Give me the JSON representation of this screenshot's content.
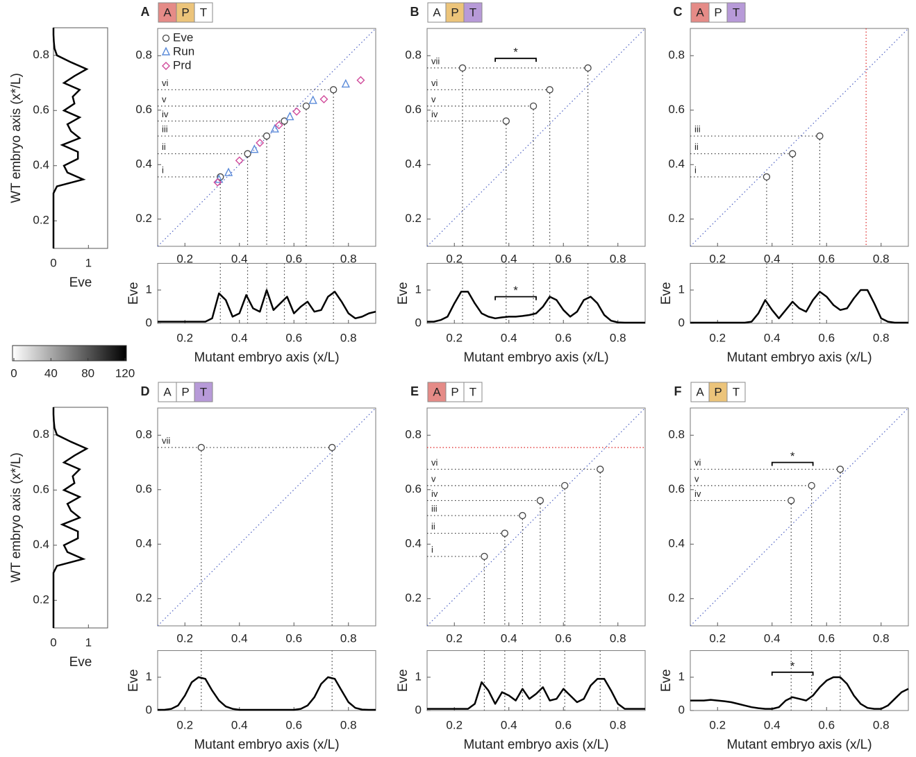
{
  "chart_data": [
    {
      "type": "line",
      "orientation": "horizontal",
      "xlabel": "Eve",
      "ylabel": "WT embryo axis (x*/L)",
      "xlim": [
        0,
        1.55
      ],
      "xticks": [
        0,
        1
      ],
      "ylim": [
        0.1,
        0.9
      ],
      "yticks": [
        0.2,
        0.4,
        0.6,
        0.8
      ],
      "color": "#000000",
      "y": [
        0.1,
        0.125,
        0.15,
        0.175,
        0.2,
        0.225,
        0.25,
        0.275,
        0.3,
        0.325,
        0.35,
        0.375,
        0.4,
        0.425,
        0.45,
        0.475,
        0.5,
        0.525,
        0.55,
        0.575,
        0.6,
        0.625,
        0.65,
        0.675,
        0.7,
        0.725,
        0.75,
        0.775,
        0.8,
        0.825,
        0.85,
        0.875,
        0.9
      ],
      "values": [
        0,
        0,
        0,
        0,
        0,
        0,
        0,
        0,
        0,
        0.1,
        0.85,
        0.4,
        0.3,
        0.7,
        0.7,
        0.25,
        0.75,
        0.5,
        0.4,
        0.75,
        0.3,
        0.6,
        0.55,
        0.75,
        0.3,
        0.6,
        0.95,
        0.5,
        0.1,
        0.03,
        0.01,
        0,
        0
      ]
    },
    {
      "type": "line",
      "orientation": "horizontal",
      "xlabel": "Eve",
      "ylabel": "WT embryo axis (x*/L)",
      "xlim": [
        0,
        1.55
      ],
      "xticks": [
        0,
        1
      ],
      "ylim": [
        0.1,
        0.9
      ],
      "yticks": [
        0.2,
        0.4,
        0.6,
        0.8
      ],
      "color": "#000000",
      "y": [
        0.1,
        0.125,
        0.15,
        0.175,
        0.2,
        0.225,
        0.25,
        0.275,
        0.3,
        0.325,
        0.35,
        0.375,
        0.4,
        0.425,
        0.45,
        0.475,
        0.5,
        0.525,
        0.55,
        0.575,
        0.6,
        0.625,
        0.65,
        0.675,
        0.7,
        0.725,
        0.75,
        0.775,
        0.8,
        0.825,
        0.85,
        0.875,
        0.9
      ],
      "values": [
        0,
        0,
        0,
        0,
        0,
        0,
        0,
        0,
        0,
        0.1,
        0.85,
        0.4,
        0.3,
        0.7,
        0.7,
        0.25,
        0.75,
        0.5,
        0.4,
        0.75,
        0.3,
        0.6,
        0.55,
        0.75,
        0.3,
        0.6,
        0.95,
        0.5,
        0.1,
        0.03,
        0.01,
        0,
        0
      ]
    },
    {
      "type": "colorbar",
      "xlim": [
        0,
        120
      ],
      "xticks": [
        0,
        40,
        80,
        120
      ],
      "colors": [
        "#ffffff",
        "#000000"
      ]
    },
    {
      "type": "scatter",
      "panel": "A",
      "tags": [
        {
          "label": "A",
          "color": "#e58b87"
        },
        {
          "label": "P",
          "color": "#ecc47a"
        },
        {
          "label": "T",
          "color": "#ffffff"
        }
      ],
      "xlim": [
        0.1,
        0.9
      ],
      "ylim": [
        0.1,
        0.9
      ],
      "xticks": [
        0.2,
        0.4,
        0.6,
        0.8
      ],
      "yticks": [
        0.2,
        0.4,
        0.6,
        0.8
      ],
      "series": [
        {
          "name": "Eve",
          "marker": "circle",
          "color": "#444444",
          "x": [
            0.33,
            0.43,
            0.5,
            0.565,
            0.645,
            0.745
          ],
          "y": [
            0.355,
            0.44,
            0.505,
            0.56,
            0.615,
            0.675
          ],
          "labels": [
            "i",
            "ii",
            "iii",
            "iv",
            "v",
            "vi"
          ]
        },
        {
          "name": "Run",
          "marker": "triangle",
          "color": "#5b8bd9",
          "x": [
            0.325,
            0.36,
            0.455,
            0.53,
            0.585,
            0.67,
            0.79
          ],
          "y": [
            0.345,
            0.37,
            0.455,
            0.53,
            0.575,
            0.635,
            0.695
          ]
        },
        {
          "name": "Prd",
          "marker": "diamond",
          "color": "#d04a9a",
          "x": [
            0.32,
            0.4,
            0.475,
            0.545,
            0.61,
            0.71,
            0.845
          ],
          "y": [
            0.335,
            0.415,
            0.48,
            0.545,
            0.595,
            0.64,
            0.71
          ]
        }
      ],
      "profile": {
        "type": "line",
        "xlabel": "Mutant embryo axis (x/L)",
        "ylabel": "Eve",
        "xlim": [
          0.1,
          0.9
        ],
        "ylim": [
          0,
          1.8
        ],
        "xticks": [
          0.2,
          0.4,
          0.6,
          0.8
        ],
        "yticks": [
          0,
          1
        ],
        "color": "#000000",
        "x": [
          0.1,
          0.125,
          0.15,
          0.175,
          0.2,
          0.225,
          0.25,
          0.275,
          0.3,
          0.325,
          0.35,
          0.375,
          0.4,
          0.425,
          0.45,
          0.475,
          0.5,
          0.525,
          0.55,
          0.575,
          0.6,
          0.625,
          0.65,
          0.675,
          0.7,
          0.725,
          0.75,
          0.775,
          0.8,
          0.825,
          0.85,
          0.875,
          0.9
        ],
        "values": [
          0.05,
          0.05,
          0.05,
          0.05,
          0.05,
          0.05,
          0.05,
          0.05,
          0.15,
          0.9,
          0.7,
          0.2,
          0.3,
          0.85,
          0.45,
          0.35,
          1.0,
          0.4,
          0.6,
          0.8,
          0.3,
          0.5,
          0.65,
          0.35,
          0.4,
          0.8,
          0.95,
          0.65,
          0.3,
          0.15,
          0.2,
          0.3,
          0.35
        ]
      }
    },
    {
      "type": "scatter",
      "panel": "B",
      "tags": [
        {
          "label": "A",
          "color": "#ffffff"
        },
        {
          "label": "P",
          "color": "#ecc47a"
        },
        {
          "label": "T",
          "color": "#b79ad8"
        }
      ],
      "xlim": [
        0.1,
        0.9
      ],
      "ylim": [
        0.1,
        0.9
      ],
      "xticks": [
        0.2,
        0.4,
        0.6,
        0.8
      ],
      "yticks": [
        0.2,
        0.4,
        0.6,
        0.8
      ],
      "series": [
        {
          "marker": "circle",
          "color": "#444444",
          "x": [
            0.23,
            0.39,
            0.49,
            0.55,
            0.69
          ],
          "y": [
            0.755,
            0.56,
            0.615,
            0.675,
            0.755
          ],
          "labels": [
            "vii",
            "iv",
            "v",
            "vi",
            null
          ]
        }
      ],
      "bracket": {
        "x": [
          0.35,
          0.5
        ],
        "y": 0.79,
        "label": "*"
      },
      "profile": {
        "type": "line",
        "xlabel": "Mutant embryo axis (x/L)",
        "ylabel": "Eve",
        "xlim": [
          0.1,
          0.9
        ],
        "ylim": [
          0,
          1.8
        ],
        "xticks": [
          0.2,
          0.4,
          0.6,
          0.8
        ],
        "yticks": [
          0,
          1
        ],
        "color": "#000000",
        "x": [
          0.1,
          0.125,
          0.15,
          0.175,
          0.2,
          0.225,
          0.25,
          0.275,
          0.3,
          0.325,
          0.35,
          0.375,
          0.4,
          0.425,
          0.45,
          0.475,
          0.5,
          0.525,
          0.55,
          0.575,
          0.6,
          0.625,
          0.65,
          0.675,
          0.7,
          0.725,
          0.75,
          0.775,
          0.8,
          0.825,
          0.85,
          0.875,
          0.9
        ],
        "values": [
          0.05,
          0.05,
          0.1,
          0.2,
          0.6,
          0.95,
          0.95,
          0.6,
          0.3,
          0.2,
          0.15,
          0.18,
          0.2,
          0.2,
          0.22,
          0.25,
          0.3,
          0.5,
          0.8,
          0.7,
          0.4,
          0.2,
          0.35,
          0.7,
          0.8,
          0.6,
          0.25,
          0.08,
          0.03,
          0.02,
          0.02,
          0.02,
          0.02
        ],
        "bracket": {
          "x": [
            0.35,
            0.5
          ],
          "y": 0.8,
          "label": "*"
        }
      }
    },
    {
      "type": "scatter",
      "panel": "C",
      "tags": [
        {
          "label": "A",
          "color": "#e58b87"
        },
        {
          "label": "P",
          "color": "#ffffff"
        },
        {
          "label": "T",
          "color": "#b79ad8"
        }
      ],
      "xlim": [
        0.1,
        0.9
      ],
      "ylim": [
        0.1,
        0.9
      ],
      "xticks": [
        0.2,
        0.4,
        0.6,
        0.8
      ],
      "yticks": [
        0.2,
        0.4,
        0.6,
        0.8
      ],
      "series": [
        {
          "marker": "circle",
          "color": "#444444",
          "x": [
            0.38,
            0.475,
            0.575
          ],
          "y": [
            0.355,
            0.44,
            0.505
          ],
          "labels": [
            "i",
            "ii",
            "iii"
          ]
        }
      ],
      "ref_x": 0.745,
      "ref_color": "#e03030",
      "profile": {
        "type": "line",
        "xlabel": "Mutant embryo axis (x/L)",
        "ylabel": "Eve",
        "xlim": [
          0.1,
          0.9
        ],
        "ylim": [
          0,
          1.8
        ],
        "xticks": [
          0.2,
          0.4,
          0.6,
          0.8
        ],
        "yticks": [
          0,
          1
        ],
        "color": "#000000",
        "x": [
          0.1,
          0.125,
          0.15,
          0.175,
          0.2,
          0.225,
          0.25,
          0.275,
          0.3,
          0.325,
          0.35,
          0.375,
          0.4,
          0.425,
          0.45,
          0.475,
          0.5,
          0.525,
          0.55,
          0.575,
          0.6,
          0.625,
          0.65,
          0.675,
          0.7,
          0.725,
          0.75,
          0.775,
          0.8,
          0.825,
          0.85,
          0.875,
          0.9
        ],
        "values": [
          0.02,
          0.02,
          0.02,
          0.02,
          0.02,
          0.02,
          0.02,
          0.02,
          0.02,
          0.05,
          0.3,
          0.7,
          0.4,
          0.15,
          0.4,
          0.65,
          0.45,
          0.35,
          0.7,
          0.95,
          0.8,
          0.55,
          0.4,
          0.45,
          0.75,
          1.0,
          1.0,
          0.6,
          0.15,
          0.05,
          0.02,
          0.02,
          0.02
        ]
      }
    },
    {
      "type": "scatter",
      "panel": "D",
      "tags": [
        {
          "label": "A",
          "color": "#ffffff"
        },
        {
          "label": "P",
          "color": "#ffffff"
        },
        {
          "label": "T",
          "color": "#b79ad8"
        }
      ],
      "xlim": [
        0.1,
        0.9
      ],
      "ylim": [
        0.1,
        0.9
      ],
      "xticks": [
        0.2,
        0.4,
        0.6,
        0.8
      ],
      "yticks": [
        0.2,
        0.4,
        0.6,
        0.8
      ],
      "series": [
        {
          "marker": "circle",
          "color": "#444444",
          "x": [
            0.26,
            0.74
          ],
          "y": [
            0.755,
            0.755
          ],
          "labels": [
            "vii",
            null
          ]
        }
      ],
      "profile": {
        "type": "line",
        "xlabel": "Mutant embryo axis (x/L)",
        "ylabel": "Eve",
        "xlim": [
          0.1,
          0.9
        ],
        "ylim": [
          0,
          1.8
        ],
        "xticks": [
          0.2,
          0.4,
          0.6,
          0.8
        ],
        "yticks": [
          0,
          1
        ],
        "color": "#000000",
        "x": [
          0.1,
          0.125,
          0.15,
          0.175,
          0.2,
          0.225,
          0.25,
          0.275,
          0.3,
          0.325,
          0.35,
          0.375,
          0.4,
          0.425,
          0.45,
          0.475,
          0.5,
          0.525,
          0.55,
          0.575,
          0.6,
          0.625,
          0.65,
          0.675,
          0.7,
          0.725,
          0.75,
          0.775,
          0.8,
          0.825,
          0.85,
          0.875,
          0.9
        ],
        "values": [
          0.02,
          0.02,
          0.05,
          0.15,
          0.45,
          0.85,
          1.0,
          0.95,
          0.6,
          0.3,
          0.12,
          0.05,
          0.02,
          0.02,
          0.02,
          0.02,
          0.02,
          0.02,
          0.02,
          0.02,
          0.02,
          0.05,
          0.15,
          0.4,
          0.8,
          1.0,
          0.95,
          0.6,
          0.25,
          0.08,
          0.03,
          0.02,
          0.02
        ]
      }
    },
    {
      "type": "scatter",
      "panel": "E",
      "tags": [
        {
          "label": "A",
          "color": "#e58b87"
        },
        {
          "label": "P",
          "color": "#ffffff"
        },
        {
          "label": "T",
          "color": "#ffffff"
        }
      ],
      "xlim": [
        0.1,
        0.9
      ],
      "ylim": [
        0.1,
        0.9
      ],
      "xticks": [
        0.2,
        0.4,
        0.6,
        0.8
      ],
      "yticks": [
        0.2,
        0.4,
        0.6,
        0.8
      ],
      "series": [
        {
          "marker": "circle",
          "color": "#444444",
          "x": [
            0.31,
            0.385,
            0.45,
            0.515,
            0.605,
            0.735
          ],
          "y": [
            0.355,
            0.44,
            0.505,
            0.56,
            0.615,
            0.675
          ],
          "labels": [
            "i",
            "ii",
            "iii",
            "iv",
            "v",
            "vi"
          ]
        }
      ],
      "ref_y": 0.755,
      "ref_color": "#e03030",
      "profile": {
        "type": "line",
        "xlabel": "Mutant embryo axis (x/L)",
        "ylabel": "Eve",
        "xlim": [
          0.1,
          0.9
        ],
        "ylim": [
          0,
          1.8
        ],
        "xticks": [
          0.2,
          0.4,
          0.6,
          0.8
        ],
        "yticks": [
          0,
          1
        ],
        "color": "#000000",
        "x": [
          0.1,
          0.125,
          0.15,
          0.175,
          0.2,
          0.225,
          0.25,
          0.275,
          0.3,
          0.325,
          0.35,
          0.375,
          0.4,
          0.425,
          0.45,
          0.475,
          0.5,
          0.525,
          0.55,
          0.575,
          0.6,
          0.625,
          0.65,
          0.675,
          0.7,
          0.725,
          0.75,
          0.775,
          0.8,
          0.825,
          0.85,
          0.875,
          0.9
        ],
        "values": [
          0.05,
          0.05,
          0.05,
          0.05,
          0.05,
          0.05,
          0.05,
          0.2,
          0.85,
          0.6,
          0.2,
          0.55,
          0.45,
          0.3,
          0.65,
          0.35,
          0.5,
          0.7,
          0.3,
          0.35,
          0.65,
          0.45,
          0.25,
          0.35,
          0.75,
          0.95,
          0.95,
          0.6,
          0.2,
          0.05,
          0.05,
          0.05,
          0.05
        ]
      }
    },
    {
      "type": "scatter",
      "panel": "F",
      "tags": [
        {
          "label": "A",
          "color": "#ffffff"
        },
        {
          "label": "P",
          "color": "#ecc47a"
        },
        {
          "label": "T",
          "color": "#ffffff"
        }
      ],
      "xlim": [
        0.1,
        0.9
      ],
      "ylim": [
        0.1,
        0.9
      ],
      "xticks": [
        0.2,
        0.4,
        0.6,
        0.8
      ],
      "yticks": [
        0.2,
        0.4,
        0.6,
        0.8
      ],
      "series": [
        {
          "marker": "circle",
          "color": "#444444",
          "x": [
            0.47,
            0.545,
            0.65
          ],
          "y": [
            0.56,
            0.615,
            0.675
          ],
          "labels": [
            "iv",
            "v",
            "vi"
          ]
        }
      ],
      "bracket": {
        "x": [
          0.4,
          0.55
        ],
        "y": 0.7,
        "label": "*"
      },
      "profile": {
        "type": "line",
        "xlabel": "Mutant embryo axis (x/L)",
        "ylabel": "Eve",
        "xlim": [
          0.1,
          0.9
        ],
        "ylim": [
          0,
          1.8
        ],
        "xticks": [
          0.2,
          0.4,
          0.6,
          0.8
        ],
        "yticks": [
          0,
          1
        ],
        "color": "#000000",
        "x": [
          0.1,
          0.125,
          0.15,
          0.175,
          0.2,
          0.225,
          0.25,
          0.275,
          0.3,
          0.325,
          0.35,
          0.375,
          0.4,
          0.425,
          0.45,
          0.475,
          0.5,
          0.525,
          0.55,
          0.575,
          0.6,
          0.625,
          0.65,
          0.675,
          0.7,
          0.725,
          0.75,
          0.775,
          0.8,
          0.825,
          0.85,
          0.875,
          0.9
        ],
        "values": [
          0.3,
          0.3,
          0.3,
          0.32,
          0.3,
          0.28,
          0.25,
          0.2,
          0.15,
          0.1,
          0.07,
          0.05,
          0.05,
          0.1,
          0.3,
          0.4,
          0.35,
          0.3,
          0.45,
          0.7,
          0.9,
          1.0,
          1.0,
          0.8,
          0.45,
          0.2,
          0.08,
          0.05,
          0.05,
          0.15,
          0.35,
          0.55,
          0.65
        ],
        "bracket": {
          "x": [
            0.4,
            0.55
          ],
          "y": 1.15,
          "label": "*"
        }
      }
    }
  ]
}
